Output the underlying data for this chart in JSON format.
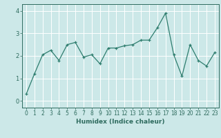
{
  "x": [
    0,
    1,
    2,
    3,
    4,
    5,
    6,
    7,
    8,
    9,
    10,
    11,
    12,
    13,
    14,
    15,
    16,
    17,
    18,
    19,
    20,
    21,
    22,
    23
  ],
  "y": [
    0.3,
    1.2,
    2.05,
    2.25,
    1.8,
    2.5,
    2.6,
    1.95,
    2.05,
    1.65,
    2.35,
    2.35,
    2.45,
    2.5,
    2.7,
    2.7,
    3.25,
    3.9,
    2.05,
    1.1,
    2.5,
    1.8,
    1.55,
    2.15
  ],
  "line_color": "#2e7d6e",
  "marker": "+",
  "marker_size": 3,
  "bg_color": "#cce8e8",
  "grid_color": "#ffffff",
  "xlabel": "Humidex (Indice chaleur)",
  "xlim": [
    -0.5,
    23.5
  ],
  "ylim": [
    -0.3,
    4.3
  ],
  "yticks": [
    0,
    1,
    2,
    3,
    4
  ],
  "xticks": [
    0,
    1,
    2,
    3,
    4,
    5,
    6,
    7,
    8,
    9,
    10,
    11,
    12,
    13,
    14,
    15,
    16,
    17,
    18,
    19,
    20,
    21,
    22,
    23
  ],
  "tick_color": "#2e6b5e",
  "axis_color": "#2e6b5e",
  "label_fontsize": 6.5,
  "tick_fontsize": 5.5,
  "linewidth": 0.9,
  "markeredgewidth": 0.9
}
